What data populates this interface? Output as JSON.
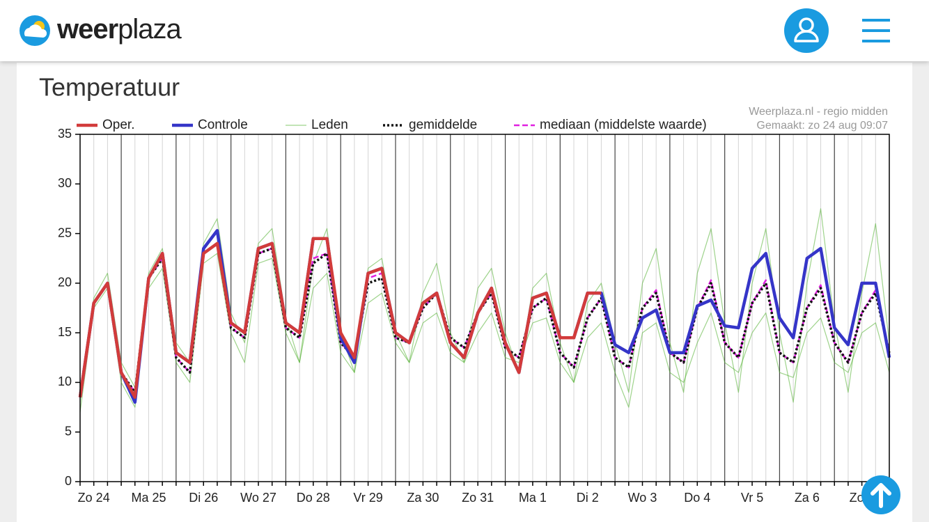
{
  "header": {
    "logo": {
      "bold": "weer",
      "light": "plaza"
    }
  },
  "chart_data": {
    "type": "line",
    "title": "Temperatuur",
    "source": "Weerplaza.nl - regio midden",
    "made": "Gemaakt: zo 24 aug 09:07",
    "x": [
      0,
      6,
      12,
      18,
      24,
      30,
      36,
      42,
      48,
      54,
      60,
      66,
      72,
      78,
      84,
      90,
      96,
      102,
      108,
      114,
      120,
      126,
      132,
      138,
      144,
      150,
      156,
      162,
      168,
      174,
      180,
      186,
      192,
      198,
      204,
      210,
      216,
      222,
      228,
      234,
      240,
      246,
      252,
      258,
      264,
      270,
      276,
      282,
      288,
      294,
      300,
      306,
      312,
      318,
      324,
      330,
      336,
      342,
      348,
      354
    ],
    "xlim": [
      0,
      354
    ],
    "xticks": [
      {
        "value": 6,
        "label": "Zo 24"
      },
      {
        "value": 30,
        "label": "Ma 25"
      },
      {
        "value": 54,
        "label": "Di 26"
      },
      {
        "value": 78,
        "label": "Wo 27"
      },
      {
        "value": 102,
        "label": "Do 28"
      },
      {
        "value": 126,
        "label": "Vr 29"
      },
      {
        "value": 150,
        "label": "Za 30"
      },
      {
        "value": 174,
        "label": "Zo 31"
      },
      {
        "value": 198,
        "label": "Ma 1"
      },
      {
        "value": 222,
        "label": "Di 2"
      },
      {
        "value": 246,
        "label": "Wo 3"
      },
      {
        "value": 270,
        "label": "Do 4"
      },
      {
        "value": 294,
        "label": "Vr 5"
      },
      {
        "value": 318,
        "label": "Za 6"
      },
      {
        "value": 342,
        "label": "Zo 7"
      }
    ],
    "xgrid": [
      18,
      42,
      66,
      90,
      114,
      138,
      162,
      186,
      210,
      234,
      258,
      282,
      306,
      330
    ],
    "ylim": [
      0,
      35
    ],
    "yticks": [
      0,
      5,
      10,
      15,
      20,
      25,
      30,
      35
    ],
    "series": [
      {
        "name": "Oper.",
        "color": "#d23b3b",
        "style": "solid",
        "values": [
          8.5,
          18,
          20,
          11,
          8.5,
          20.5,
          23,
          13,
          12,
          23,
          24,
          16,
          15,
          23.5,
          24,
          16,
          15,
          24.5,
          24.5,
          15,
          12.5,
          21,
          21.5,
          15,
          14,
          18,
          19,
          14,
          12.5,
          17,
          19.5,
          14,
          11,
          18.5,
          19,
          14.5,
          14.5,
          19,
          19,
          null,
          null,
          null,
          null,
          null,
          null,
          null,
          null,
          null,
          null,
          null,
          null,
          null,
          null,
          null,
          null,
          null,
          null,
          null,
          null,
          null
        ]
      },
      {
        "name": "Controle",
        "color": "#3535c8",
        "style": "solid",
        "values": [
          8.5,
          18,
          20,
          11,
          8,
          20.5,
          23,
          13,
          12,
          23.5,
          25.3,
          16,
          15,
          23.5,
          24,
          16,
          15,
          24.5,
          24.5,
          14.5,
          12,
          21,
          21.5,
          15,
          14,
          18,
          19,
          14,
          12.5,
          17,
          19.5,
          14,
          11,
          18.5,
          19,
          14.5,
          14.5,
          19,
          19,
          13.8,
          13,
          16.5,
          17.3,
          13,
          13,
          17.7,
          18.3,
          15.7,
          15.5,
          21.5,
          23,
          16.5,
          14.5,
          22.5,
          23.5,
          15.5,
          13.8,
          20,
          20,
          12.5
        ]
      },
      {
        "name": "Leden",
        "color": "#4fae2c",
        "style": "thin",
        "members": [
          [
            8,
            18.5,
            21,
            12,
            9.5,
            21,
            23.5,
            14,
            12,
            24,
            26.5,
            17,
            14,
            24,
            25.5,
            16.5,
            12,
            22,
            25.5,
            15,
            11,
            21.5,
            22.5,
            15,
            12,
            19,
            22,
            15,
            12,
            19.5,
            21.5,
            15,
            11,
            19.5,
            21,
            14,
            10,
            18,
            20,
            14,
            9,
            20,
            23.5,
            14,
            9,
            21,
            25.5,
            16,
            9,
            20,
            25.5,
            15,
            8,
            20,
            27.5,
            16,
            9,
            19,
            26,
            14
          ],
          [
            7,
            17.5,
            19.5,
            10,
            7.5,
            19.5,
            21.5,
            12,
            10,
            22,
            23,
            15,
            12,
            22,
            22.5,
            15,
            12,
            19.5,
            21,
            13,
            11,
            18,
            19,
            14,
            12,
            16,
            17,
            13,
            12,
            15,
            17,
            12.5,
            12,
            16,
            16.5,
            12,
            10,
            14.5,
            16,
            11,
            7.5,
            15,
            16,
            11,
            10,
            14,
            17,
            12,
            11,
            15,
            17,
            11,
            10.5,
            15,
            16.5,
            12,
            11,
            15,
            16,
            11
          ]
        ]
      },
      {
        "name": "gemiddelde",
        "color": "#111111",
        "style": "dotted",
        "values": [
          8.5,
          18,
          20,
          11,
          9,
          20.5,
          22.5,
          12.5,
          11,
          23,
          24,
          15.5,
          14.5,
          23,
          23.5,
          15.5,
          14.5,
          22,
          23,
          14,
          12.5,
          20,
          20.5,
          14.5,
          14,
          17.5,
          19,
          14.5,
          13.5,
          17,
          19,
          13.5,
          12.5,
          17.5,
          18.5,
          13,
          11.5,
          16.5,
          18.5,
          12.5,
          11.5,
          17.5,
          19,
          13,
          12,
          17.5,
          20,
          14,
          12.5,
          18,
          20,
          13,
          12,
          17.5,
          19.5,
          14,
          12,
          17,
          19,
          13
        ]
      },
      {
        "name": "mediaan (middelste waarde)",
        "color": "#e020e0",
        "style": "dashed",
        "values": [
          8.5,
          18,
          20,
          11,
          9,
          20.5,
          22.5,
          12.5,
          11,
          23,
          24,
          15.5,
          14.5,
          23,
          23.5,
          15.5,
          14.5,
          22.5,
          23,
          14,
          12.5,
          20.5,
          21,
          14.5,
          14,
          17.5,
          19,
          14.5,
          13.5,
          17,
          19,
          13.5,
          12.5,
          17.5,
          18.5,
          13,
          11.5,
          16.5,
          18.5,
          12.5,
          11.5,
          17.5,
          19.3,
          13,
          12,
          17.5,
          20.3,
          14,
          12.5,
          18,
          20.3,
          13,
          12,
          17.5,
          19.8,
          14,
          12,
          17,
          19.3,
          13
        ]
      }
    ]
  }
}
